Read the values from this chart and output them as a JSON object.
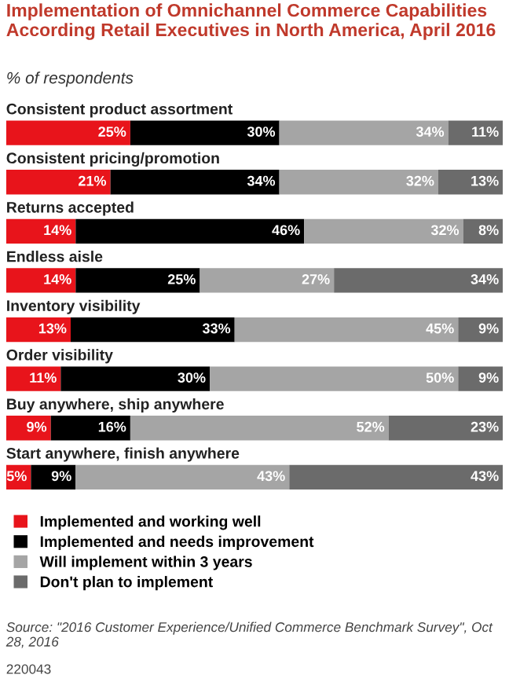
{
  "chart_data": {
    "type": "bar",
    "orientation": "horizontal",
    "stacked": true,
    "title": "Implementation of Omnichannel Commerce Capabilities According Retail Executives in North America, April 2016",
    "subtitle": "% of respondents",
    "categories": [
      "Consistent product assortment",
      "Consistent pricing/promotion",
      "Returns accepted",
      "Endless aisle",
      "Inventory visibility",
      "Order visibility",
      "Buy anywhere, ship anywhere",
      "Start anywhere, finish anywhere"
    ],
    "series": [
      {
        "name": "Implemented and working well",
        "color": "#e8141b",
        "values": [
          25,
          21,
          14,
          14,
          13,
          11,
          9,
          5
        ],
        "value_labels": [
          "25%",
          "21%",
          "14%",
          "14%",
          "13%",
          "11%",
          "9%",
          "5%"
        ]
      },
      {
        "name": "Implemented and needs improvement",
        "color": "#000000",
        "values": [
          30,
          34,
          46,
          25,
          33,
          30,
          16,
          9
        ],
        "value_labels": [
          "30%",
          "34%",
          "46%",
          "25%",
          "33%",
          "30%",
          "16%",
          "9%"
        ]
      },
      {
        "name": "Will implement within 3 years",
        "color": "#a5a5a5",
        "values": [
          34,
          32,
          32,
          27,
          45,
          50,
          52,
          43
        ],
        "value_labels": [
          "34%",
          "32%",
          "32%",
          "27%",
          "45%",
          "50%",
          "52%",
          "43%"
        ]
      },
      {
        "name": "Don't plan to implement",
        "color": "#6b6b6b",
        "values": [
          11,
          13,
          8,
          34,
          9,
          9,
          23,
          43
        ],
        "value_labels": [
          "11%",
          "13%",
          "8%",
          "34%",
          "9%",
          "9%",
          "23%",
          "43%"
        ]
      }
    ],
    "xlim": [
      0,
      100
    ],
    "tick_labels": false,
    "legend": "bottom",
    "annotations": [
      "Source: \"2016 Customer Experience/Unified Commerce Benchmark Survey\", Oct 28, 2016",
      "220043"
    ]
  }
}
